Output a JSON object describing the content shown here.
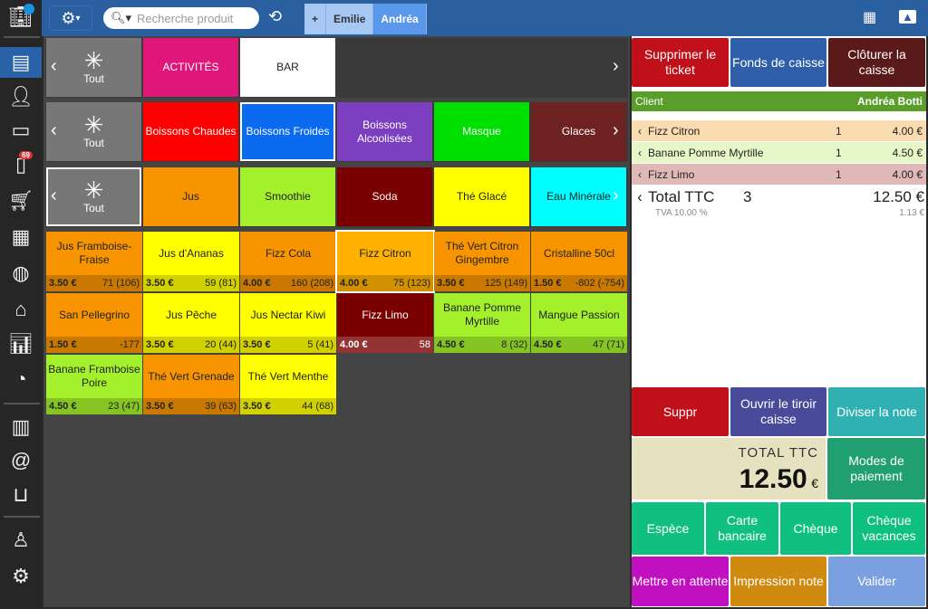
{
  "sidebar": {
    "items": [
      {
        "icon": "building-icon"
      },
      {
        "icon": "cash-register-icon",
        "active": true
      },
      {
        "icon": "contacts-icon"
      },
      {
        "icon": "id-card-icon"
      },
      {
        "icon": "tablet-icon",
        "badge": "69"
      },
      {
        "icon": "cart-icon"
      },
      {
        "icon": "calendar-icon"
      },
      {
        "icon": "globe-icon"
      },
      {
        "icon": "warehouse-icon"
      },
      {
        "icon": "bar-chart-icon"
      },
      {
        "icon": "gauge-icon"
      },
      {
        "icon": "newspaper-icon"
      },
      {
        "icon": "at-icon"
      },
      {
        "icon": "inbox-icon"
      },
      {
        "icon": "user-icon"
      },
      {
        "icon": "gear-icon"
      }
    ]
  },
  "topbar": {
    "search_placeholder": "Recherche produit",
    "tabs": [
      {
        "label": "+"
      },
      {
        "label": "Emilie"
      },
      {
        "label": "Andréa",
        "selected": true
      }
    ]
  },
  "categories": {
    "row1": [
      {
        "label": "Tout",
        "color": "#777777"
      },
      {
        "label": "ACTIVITÉS",
        "color": "#e0177a"
      },
      {
        "label": "BAR",
        "color": "#ffffff"
      }
    ],
    "row2": [
      {
        "label": "Tout",
        "color": "#777777"
      },
      {
        "label": "Boissons Chaudes",
        "color": "#ff0000"
      },
      {
        "label": "Boissons Froides",
        "color": "#0a6af0",
        "selected": true
      },
      {
        "label": "Boissons Alcoolisées",
        "color": "#7b3fbf"
      },
      {
        "label": "Masque",
        "color": "#00e000"
      },
      {
        "label": "Glaces",
        "color": "#6e2222"
      }
    ],
    "row3": [
      {
        "label": "Tout",
        "color": "#777777",
        "selected": true
      },
      {
        "label": "Jus",
        "color": "#f79400"
      },
      {
        "label": "Smoothie",
        "color": "#a4f02c"
      },
      {
        "label": "Soda",
        "color": "#7a0000"
      },
      {
        "label": "Thé Glacé",
        "color": "#ffff00"
      },
      {
        "label": "Eau Minérale",
        "color": "#00ffff"
      }
    ]
  },
  "products": [
    {
      "name": "Jus Framboise-Fraise",
      "price": "3.50 €",
      "stock": "71 (106)",
      "color": "#f79400"
    },
    {
      "name": "Jus d'Ananas",
      "price": "3.50 €",
      "stock": "59 (81)",
      "color": "#ffff00"
    },
    {
      "name": "Fizz Cola",
      "price": "4.00 €",
      "stock": "160 (208)",
      "color": "#f79400"
    },
    {
      "name": "Fizz Citron",
      "price": "4.00 €",
      "stock": "75 (123)",
      "color": "#ffb000",
      "selected": true
    },
    {
      "name": "Thé Vert Citron Gingembre",
      "price": "3.50 €",
      "stock": "125 (149)",
      "color": "#f79400"
    },
    {
      "name": "Cristalline 50cl",
      "price": "1.50 €",
      "stock": "-802 (-754)",
      "color": "#f79400"
    },
    {
      "name": "San Pellegrino",
      "price": "1.50 €",
      "stock": "-177",
      "color": "#f79400"
    },
    {
      "name": "Jus Pêche",
      "price": "3.50 €",
      "stock": "20 (44)",
      "color": "#ffff00"
    },
    {
      "name": "Jus Nectar Kiwi",
      "price": "3.50 €",
      "stock": "5 (41)",
      "color": "#ffff00"
    },
    {
      "name": "Fizz Limo",
      "price": "4.00 €",
      "stock": "58",
      "color": "#7a0000"
    },
    {
      "name": "Banane Pomme Myrtille",
      "price": "4.50 €",
      "stock": "8 (32)",
      "color": "#a4f02c"
    },
    {
      "name": "Mangue Passion",
      "price": "4.50 €",
      "stock": "47 (71)",
      "color": "#a4f02c"
    },
    {
      "name": "Banane Framboise Poire",
      "price": "4.50 €",
      "stock": "23 (47)",
      "color": "#a4f02c"
    },
    {
      "name": "Thé Vert Grenade",
      "price": "3.50 €",
      "stock": "39 (63)",
      "color": "#f79400"
    },
    {
      "name": "Thé Vert Menthe",
      "price": "3.50 €",
      "stock": "44 (68)",
      "color": "#ffff00"
    }
  ],
  "ticket": {
    "buttons": {
      "delete_ticket": "Supprimer le ticket",
      "cash_fund": "Fonds de caisse",
      "close_register": "Clôturer la caisse"
    },
    "client_label": "Client",
    "client_name": "Andréa Botti",
    "lines": [
      {
        "name": "Fizz Citron",
        "qty": "1",
        "price": "4.00 €",
        "color": "#fbdcb0"
      },
      {
        "name": "Banane Pomme Myrtille",
        "qty": "1",
        "price": "4.50 €",
        "color": "#e6f8c8"
      },
      {
        "name": "Fizz Limo",
        "qty": "1",
        "price": "4.00 €",
        "color": "#e0b8b8"
      }
    ],
    "total_label": "Total TTC",
    "total_qty": "3",
    "total": "12.50 €",
    "tva_label": "TVA 10.00 %",
    "tva": "1.13 €"
  },
  "actions": {
    "suppr": "Suppr",
    "open_drawer": "Ouvrir le tiroir caisse",
    "split": "Diviser la note",
    "total_ttc_label": "TOTAL TTC",
    "total_amount": "12.50",
    "currency": "€",
    "payment_modes": "Modes de paiement",
    "cash": "Espèce",
    "card": "Carte bancaire",
    "check": "Chèque",
    "holiday_check": "Chèque vacances",
    "hold": "Mettre en attente",
    "print": "Impression note",
    "validate": "Valider"
  }
}
